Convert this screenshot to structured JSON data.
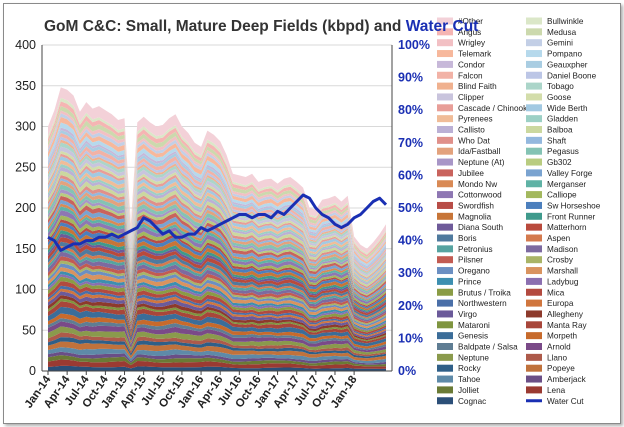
{
  "chart_data": {
    "type": "area",
    "title": {
      "main": "GoM C&C: Small, Mature Deep Fields (kbpd) and ",
      "highlight": "Water Cut"
    },
    "highlight_color": "#1a2fb3",
    "y_left": {
      "min": 0,
      "max": 400,
      "ticks": [
        "0",
        "50",
        "100",
        "150",
        "200",
        "250",
        "300",
        "350",
        "400"
      ]
    },
    "y_right": {
      "min": 0,
      "max": 100,
      "ticks": [
        "0%",
        "10%",
        "20%",
        "30%",
        "40%",
        "50%",
        "60%",
        "70%",
        "80%",
        "90%",
        "100%"
      ]
    },
    "x_tick_labels": [
      "Jan-14",
      "Apr-14",
      "Jul-14",
      "Oct-14",
      "Jan-15",
      "Apr-15",
      "Jul-15",
      "Oct-15",
      "Jan-16",
      "Apr-16",
      "Jul-16",
      "Oct-16",
      "Jan-17",
      "Apr-17",
      "Jul-17",
      "Oct-17",
      "Jan-18"
    ],
    "total_kbpd": [
      300,
      320,
      348,
      345,
      338,
      318,
      330,
      322,
      325,
      320,
      315,
      308,
      310,
      180,
      305,
      312,
      305,
      300,
      302,
      310,
      315,
      300,
      292,
      280,
      275,
      295,
      290,
      282,
      265,
      242,
      240,
      238,
      242,
      232,
      235,
      236,
      230,
      236,
      238,
      232,
      225,
      200,
      198,
      210,
      212,
      215,
      208,
      215,
      165,
      155,
      150,
      158,
      168,
      180
    ],
    "water_cut_pct": [
      41,
      40,
      37,
      38,
      39,
      39,
      40,
      40,
      41,
      41,
      42,
      41,
      42,
      43,
      44,
      47,
      46,
      44,
      42,
      43,
      41,
      41,
      42,
      42,
      44,
      43,
      44,
      45,
      46,
      47,
      48,
      48,
      47,
      48,
      48,
      47,
      49,
      48,
      50,
      52,
      54,
      53,
      50,
      48,
      47,
      45,
      44,
      45,
      47,
      48,
      50,
      52,
      53,
      51
    ],
    "legend": [
      {
        "name": "#Other",
        "color": "#f3d1d8"
      },
      {
        "name": "Bullwinkle",
        "color": "#dbe7c8"
      },
      {
        "name": "Angus",
        "color": "#f5b5b3"
      },
      {
        "name": "Medusa",
        "color": "#ccd9ad"
      },
      {
        "name": "Wrigley",
        "color": "#f2c0c4"
      },
      {
        "name": "Gemini",
        "color": "#c3cfe6"
      },
      {
        "name": "Telemark",
        "color": "#f7b89c"
      },
      {
        "name": "Pompano",
        "color": "#b6d9ec"
      },
      {
        "name": "Condor",
        "color": "#c7b8d9"
      },
      {
        "name": "Geauxpher",
        "color": "#a9cde2"
      },
      {
        "name": "Falcon",
        "color": "#f2b2a6"
      },
      {
        "name": "Daniel Boone",
        "color": "#bcc6e6"
      },
      {
        "name": "Blind Faith",
        "color": "#f0b18f"
      },
      {
        "name": "Tobago",
        "color": "#abd5c9"
      },
      {
        "name": "Clipper",
        "color": "#c9c4dd"
      },
      {
        "name": "Goose",
        "color": "#d3ddaa"
      },
      {
        "name": "Cascade / Chinook",
        "color": "#e89e98"
      },
      {
        "name": "Wide Berth",
        "color": "#a2c9e2"
      },
      {
        "name": "Pyrenees",
        "color": "#f0bc98"
      },
      {
        "name": "Gladden",
        "color": "#9cd0c5"
      },
      {
        "name": "Callisto",
        "color": "#bbb0d5"
      },
      {
        "name": "Balboa",
        "color": "#cbd89f"
      },
      {
        "name": "Who Dat",
        "color": "#e0908a"
      },
      {
        "name": "Shaft",
        "color": "#93b8de"
      },
      {
        "name": "Ida/Fastball",
        "color": "#e3a27d"
      },
      {
        "name": "Pegasus",
        "color": "#84c3b4"
      },
      {
        "name": "Neptune (At)",
        "color": "#a896c7"
      },
      {
        "name": "Gb302",
        "color": "#b9cc80"
      },
      {
        "name": "Jubilee",
        "color": "#c9635d"
      },
      {
        "name": "Valley Forge",
        "color": "#7aa3d0"
      },
      {
        "name": "Mondo Nw",
        "color": "#d98a55"
      },
      {
        "name": "Merganser",
        "color": "#5fb2a5"
      },
      {
        "name": "Cottonwood",
        "color": "#8e77b3"
      },
      {
        "name": "Calliope",
        "color": "#a3b85e"
      },
      {
        "name": "Swordfish",
        "color": "#b84d47"
      },
      {
        "name": "Sw Horseshoe",
        "color": "#4c7fbd"
      },
      {
        "name": "Magnolia",
        "color": "#c77538"
      },
      {
        "name": "Front Runner",
        "color": "#3f9a8c"
      },
      {
        "name": "Diana South",
        "color": "#6e5a99"
      },
      {
        "name": "Matterhorn",
        "color": "#b94a3c"
      },
      {
        "name": "Boris",
        "color": "#4f7a9e"
      },
      {
        "name": "Aspen",
        "color": "#d47a4e"
      },
      {
        "name": "Petronius",
        "color": "#56a3a0"
      },
      {
        "name": "Madison",
        "color": "#7d6aa0"
      },
      {
        "name": "Pilsner",
        "color": "#c25b52"
      },
      {
        "name": "Crosby",
        "color": "#a9b467"
      },
      {
        "name": "Oregano",
        "color": "#6b8fc2"
      },
      {
        "name": "Marshall",
        "color": "#d9935f"
      },
      {
        "name": "Prince",
        "color": "#3d8fb0"
      },
      {
        "name": "Ladybug",
        "color": "#8b6fb0"
      },
      {
        "name": "Brutus / Troika",
        "color": "#8a9c45"
      },
      {
        "name": "Mica",
        "color": "#b34a3f"
      },
      {
        "name": "Northwestern",
        "color": "#4a6fa8"
      },
      {
        "name": "Europa",
        "color": "#d0763e"
      },
      {
        "name": "Virgo",
        "color": "#6b5a9a"
      },
      {
        "name": "Allegheny",
        "color": "#8d3a2c"
      },
      {
        "name": "Mataroni",
        "color": "#7f9540"
      },
      {
        "name": "Manta Ray",
        "color": "#a8463a"
      },
      {
        "name": "Genesis",
        "color": "#3b6d99"
      },
      {
        "name": "Morpeth",
        "color": "#c76a2c"
      },
      {
        "name": "Baldpate / Salsa",
        "color": "#5f7d93"
      },
      {
        "name": "Arnold",
        "color": "#7a4a88"
      },
      {
        "name": "Neptune",
        "color": "#8a9a4c"
      },
      {
        "name": "Llano",
        "color": "#ad5a4a"
      },
      {
        "name": "Rocky",
        "color": "#2f5f88"
      },
      {
        "name": "Popeye",
        "color": "#c0723c"
      },
      {
        "name": "Tahoe",
        "color": "#5e8aa8"
      },
      {
        "name": "Amberjack",
        "color": "#6a4e86"
      },
      {
        "name": "Jolliet",
        "color": "#6a7a35"
      },
      {
        "name": "Lena",
        "color": "#9a3a32"
      },
      {
        "name": "Cognac",
        "color": "#2b4f78"
      },
      {
        "name": "Water Cut",
        "color": "#1a2fb3",
        "line": true
      }
    ]
  }
}
